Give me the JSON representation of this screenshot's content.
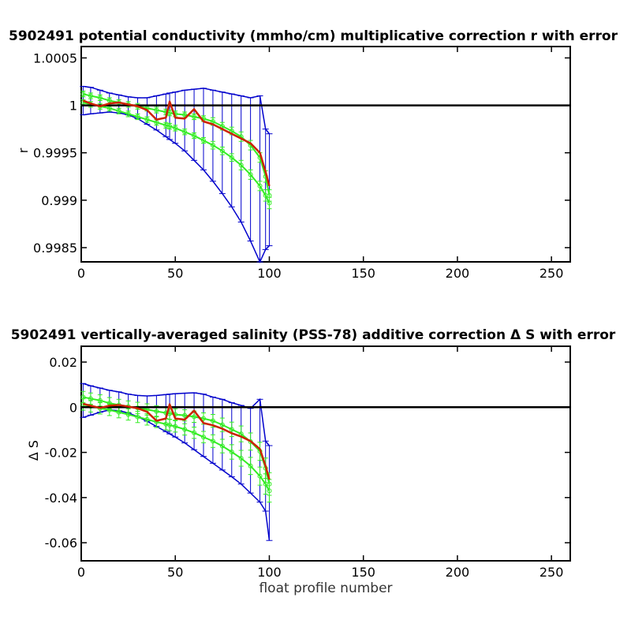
{
  "chart_data": [
    {
      "type": "line",
      "title": "5902491 potential conductivity (mmho/cm) multiplicative correction r with error",
      "xlabel": "",
      "ylabel": "r",
      "xlim": [
        0,
        260
      ],
      "ylim": [
        0.99835,
        1.00062
      ],
      "xticks": [
        0,
        50,
        100,
        150,
        200,
        250
      ],
      "xtick_labels": [
        "0",
        "50",
        "100",
        "150",
        "200",
        "250"
      ],
      "yticks": [
        0.9985,
        0.999,
        0.9995,
        1.0,
        1.0005
      ],
      "ytick_labels": [
        "0.9985",
        "0.999",
        "0.9995",
        "1",
        "1.0005"
      ],
      "reference_line": 1.0,
      "grid": false,
      "colors": {
        "estimate": "#cc2200",
        "green_errorbars": "#33ee22",
        "blue_errorbars": "#0000cc",
        "reference": "#000000"
      },
      "x": [
        1,
        5,
        10,
        15,
        20,
        25,
        30,
        35,
        40,
        45,
        47,
        50,
        55,
        60,
        65,
        70,
        75,
        80,
        85,
        90,
        95,
        98,
        100
      ],
      "series": [
        {
          "values": [
            1.00005,
            1.00002,
            0.99999,
            1.00002,
            1.00003,
            1.00001,
            0.99999,
            0.99995,
            0.99985,
            0.99987,
            1.00004,
            0.99987,
            0.99986,
            0.99996,
            0.99983,
            0.9998,
            0.99975,
            0.9997,
            0.99965,
            0.9996,
            0.9995,
            0.9993,
            0.99915
          ]
        },
        {
          "values": [
            1.00012,
            1.0001,
            1.00008,
            1.00005,
            1.00003,
            1.00001,
            0.99999,
            0.99997,
            0.99995,
            0.99993,
            0.99992,
            0.99991,
            0.9999,
            0.99988,
            0.99986,
            0.99983,
            0.99978,
            0.99973,
            0.99967,
            0.99958,
            0.99945,
            0.99925,
            0.99905
          ],
          "err": [
            3e-05,
            3e-05,
            3e-05,
            3e-05,
            3e-05,
            3e-05,
            3e-05,
            3e-05,
            3e-05,
            3e-05,
            3e-05,
            3e-05,
            3e-05,
            3e-05,
            3e-05,
            4e-05,
            4e-05,
            4e-05,
            5e-05,
            5e-05,
            5e-05,
            6e-05,
            6e-05
          ]
        },
        {
          "values": [
            1.00003,
            1.00001,
            0.99999,
            0.99997,
            0.99994,
            0.99991,
            0.99988,
            0.99985,
            0.99982,
            0.99979,
            0.99978,
            0.99976,
            0.99972,
            0.99968,
            0.99963,
            0.99958,
            0.99952,
            0.99945,
            0.99937,
            0.99927,
            0.99915,
            0.99905,
            0.99897
          ],
          "err": [
            3e-05,
            3e-05,
            3e-05,
            3e-05,
            3e-05,
            3e-05,
            3e-05,
            3e-05,
            3e-05,
            3e-05,
            3e-05,
            3e-05,
            3e-05,
            3e-05,
            3e-05,
            4e-05,
            4e-05,
            4e-05,
            5e-05,
            5e-05,
            5e-05,
            6e-05,
            6e-05
          ]
        },
        {
          "values": [
            1.0002,
            1.00019,
            1.00016,
            1.00013,
            1.00011,
            1.00009,
            1.00008,
            1.00008,
            1.0001,
            1.00012,
            1.00013,
            1.00014,
            1.00016,
            1.00017,
            1.00018,
            1.00016,
            1.00014,
            1.00012,
            1.0001,
            1.00008,
            1.0001,
            0.99975,
            0.9997
          ]
        },
        {
          "values": [
            0.9999,
            0.99991,
            0.99992,
            0.99993,
            0.99992,
            0.9999,
            0.99986,
            0.9998,
            0.99974,
            0.99967,
            0.99964,
            0.9996,
            0.99952,
            0.99942,
            0.99932,
            0.9992,
            0.99907,
            0.99893,
            0.99877,
            0.99857,
            0.99835,
            0.99848,
            0.99852
          ]
        }
      ]
    },
    {
      "type": "line",
      "title": "5902491 vertically-averaged salinity (PSS-78) additive correction Δ S with error",
      "xlabel": "float profile number",
      "ylabel": "Δ S",
      "xlim": [
        0,
        260
      ],
      "ylim": [
        -0.068,
        0.027
      ],
      "xticks": [
        0,
        50,
        100,
        150,
        200,
        250
      ],
      "xtick_labels": [
        "0",
        "50",
        "100",
        "150",
        "200",
        "250"
      ],
      "yticks": [
        -0.06,
        -0.04,
        -0.02,
        0,
        0.02
      ],
      "ytick_labels": [
        "-0.06",
        "-0.04",
        "-0.02",
        "0",
        "0.02"
      ],
      "reference_line": 0,
      "grid": false,
      "colors": {
        "estimate": "#cc2200",
        "green_errorbars": "#33ee22",
        "blue_errorbars": "#0000cc",
        "reference": "#000000"
      },
      "x": [
        1,
        5,
        10,
        15,
        20,
        25,
        30,
        35,
        40,
        45,
        47,
        50,
        55,
        60,
        65,
        70,
        75,
        80,
        85,
        90,
        95,
        98,
        100
      ],
      "series": [
        {
          "values": [
            0.0015,
            0.0007,
            -0.0003,
            0.0007,
            0.001,
            0.0003,
            -0.0005,
            -0.002,
            -0.006,
            -0.005,
            0.0013,
            -0.005,
            -0.0055,
            -0.0015,
            -0.007,
            -0.008,
            -0.0095,
            -0.0115,
            -0.013,
            -0.015,
            -0.0185,
            -0.026,
            -0.032
          ]
        },
        {
          "values": [
            0.0045,
            0.0038,
            0.003,
            0.0018,
            0.001,
            0.0003,
            -0.0003,
            -0.001,
            -0.0018,
            -0.0025,
            -0.0028,
            -0.0032,
            -0.0036,
            -0.0042,
            -0.005,
            -0.006,
            -0.0078,
            -0.0098,
            -0.0118,
            -0.0152,
            -0.0195,
            -0.027,
            -0.034
          ],
          "err": [
            0.0025,
            0.0025,
            0.0025,
            0.0025,
            0.0025,
            0.0025,
            0.0025,
            0.0025,
            0.0025,
            0.0025,
            0.0025,
            0.0025,
            0.0025,
            0.0025,
            0.0025,
            0.0028,
            0.003,
            0.0032,
            0.0035,
            0.0038,
            0.004,
            0.0045,
            0.005
          ]
        },
        {
          "values": [
            0.0012,
            0.0004,
            -0.0005,
            -0.0012,
            -0.0022,
            -0.0032,
            -0.0043,
            -0.0054,
            -0.0065,
            -0.0075,
            -0.0079,
            -0.0085,
            -0.0098,
            -0.0113,
            -0.0132,
            -0.015,
            -0.0172,
            -0.0198,
            -0.0226,
            -0.026,
            -0.0305,
            -0.034,
            -0.037
          ],
          "err": [
            0.0025,
            0.0025,
            0.0025,
            0.0025,
            0.0025,
            0.0025,
            0.0025,
            0.0025,
            0.0025,
            0.0025,
            0.0025,
            0.0025,
            0.0025,
            0.0025,
            0.0025,
            0.0028,
            0.003,
            0.0032,
            0.0035,
            0.0038,
            0.004,
            0.0045,
            0.005
          ]
        },
        {
          "values": [
            0.0105,
            0.0095,
            0.0085,
            0.0075,
            0.0068,
            0.0058,
            0.0052,
            0.005,
            0.0052,
            0.0056,
            0.0058,
            0.006,
            0.0062,
            0.0064,
            0.0058,
            0.0045,
            0.0035,
            0.002,
            0.0008,
            -0.0005,
            0.0035,
            -0.015,
            -0.017
          ]
        },
        {
          "values": [
            -0.0045,
            -0.0035,
            -0.0022,
            -0.0012,
            -0.0015,
            -0.0025,
            -0.0042,
            -0.0062,
            -0.0085,
            -0.0108,
            -0.0118,
            -0.0132,
            -0.0158,
            -0.0188,
            -0.0218,
            -0.0248,
            -0.0278,
            -0.0308,
            -0.034,
            -0.038,
            -0.042,
            -0.046,
            -0.059
          ]
        }
      ]
    }
  ]
}
